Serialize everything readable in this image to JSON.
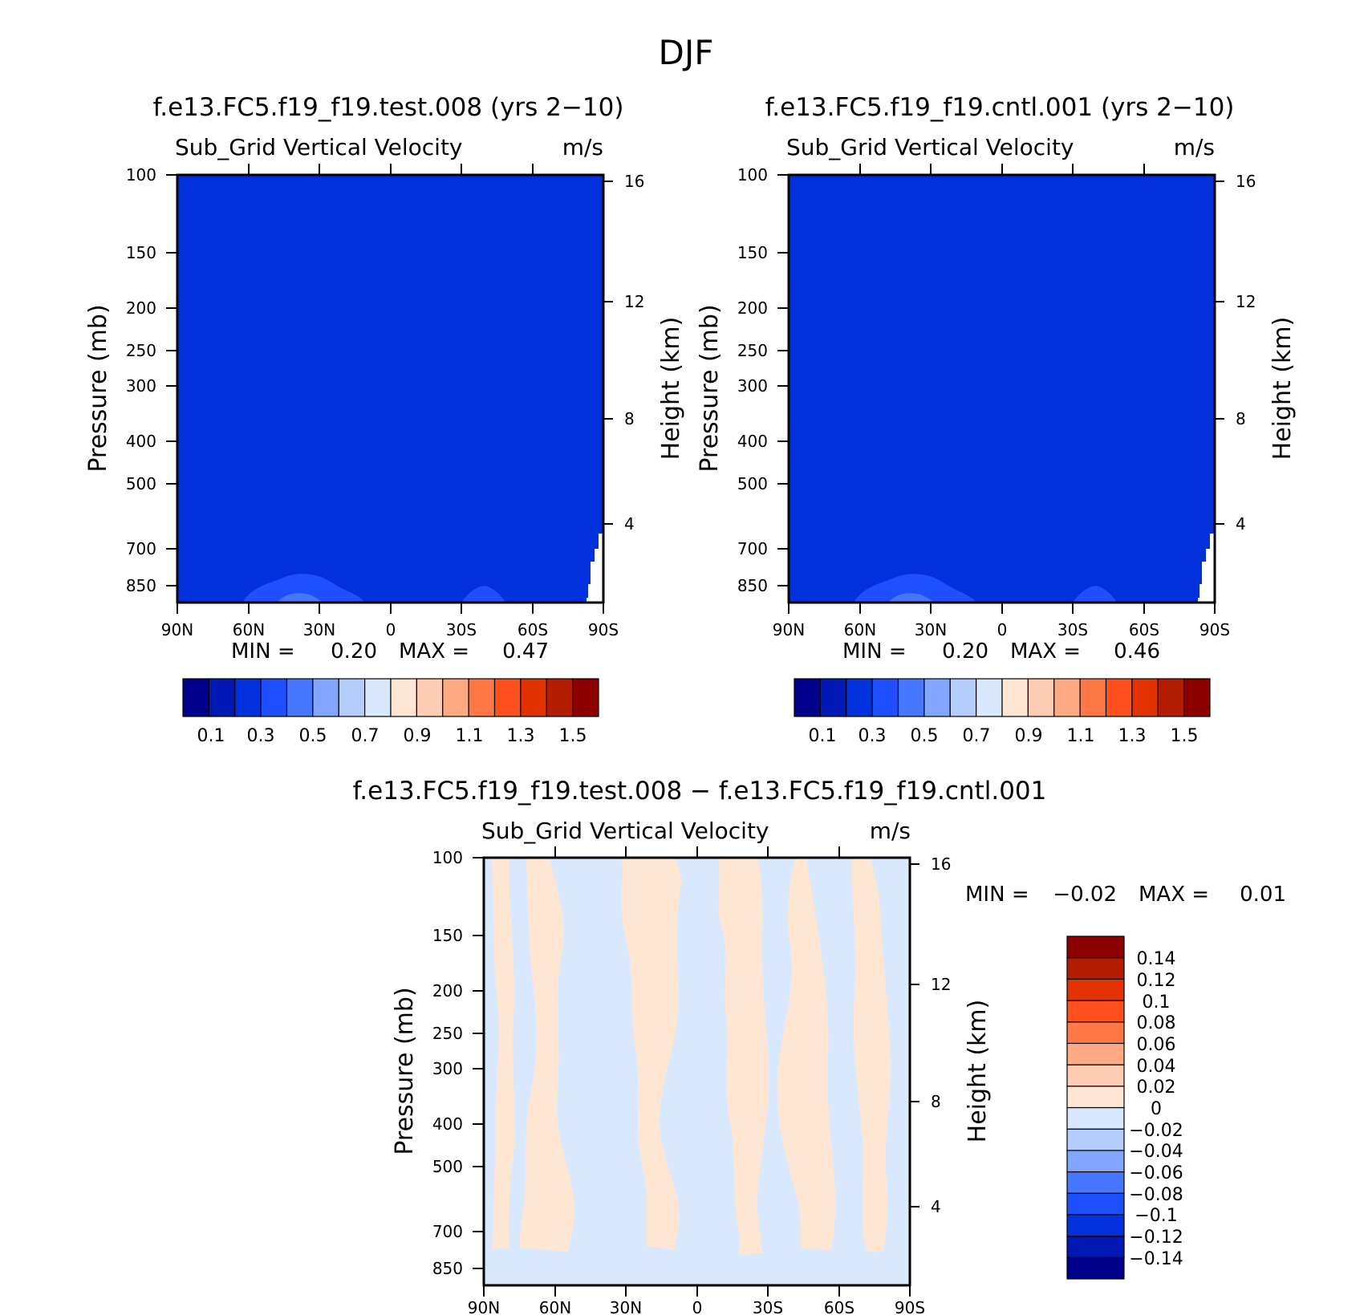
{
  "page_title": "DJF",
  "colors": {
    "abs_scale": [
      "#00008c",
      "#0019b4",
      "#0031dc",
      "#1e50ff",
      "#4678ff",
      "#82a5ff",
      "#b4cdff",
      "#d7e8ff",
      "#ffe6d2",
      "#ffcdb4",
      "#ffaa82",
      "#ff7846",
      "#ff501e",
      "#e13200",
      "#b41e00",
      "#8c0000"
    ],
    "diff_scale": [
      "#00008c",
      "#0019b4",
      "#0031dc",
      "#1e50ff",
      "#4678ff",
      "#82a5ff",
      "#b4cdff",
      "#d7e8ff",
      "#ffe6d2",
      "#ffcdb4",
      "#ffaa82",
      "#ff7846",
      "#ff501e",
      "#e13200",
      "#b41e00",
      "#8c0000"
    ]
  },
  "chart_data": [
    {
      "type": "heatmap",
      "title": "f.e13.FC5.f19_f19.test.008 (yrs 2-10)",
      "variable": "Sub_Grid Vertical Velocity",
      "units": "m/s",
      "ylabel": "Pressure (mb)",
      "y2label": "Height (km)",
      "xticks": [
        "90N",
        "60N",
        "30N",
        "0",
        "30S",
        "60S",
        "90S"
      ],
      "yticks": [
        "100",
        "150",
        "200",
        "250",
        "300",
        "400",
        "500",
        "700",
        "850"
      ],
      "y2ticks": [
        "16",
        "12",
        "8",
        "4"
      ],
      "min_text": "MIN =",
      "min_value": "0.20",
      "max_text": "MAX =",
      "max_value": "0.47",
      "fill_level": "0.2-0.3",
      "colorbar_labels": [
        "0.1",
        "0.3",
        "0.5",
        "0.7",
        "0.9",
        "1.1",
        "1.3",
        "1.5"
      ]
    },
    {
      "type": "heatmap",
      "title": "f.e13.FC5.f19_f19.cntl.001 (yrs 2-10)",
      "variable": "Sub_Grid Vertical Velocity",
      "units": "m/s",
      "ylabel": "Pressure (mb)",
      "y2label": "Height (km)",
      "xticks": [
        "90N",
        "60N",
        "30N",
        "0",
        "30S",
        "60S",
        "90S"
      ],
      "yticks": [
        "100",
        "150",
        "200",
        "250",
        "300",
        "400",
        "500",
        "700",
        "850"
      ],
      "y2ticks": [
        "16",
        "12",
        "8",
        "4"
      ],
      "min_text": "MIN =",
      "min_value": "0.20",
      "max_text": "MAX =",
      "max_value": "0.46",
      "fill_level": "0.2-0.3",
      "colorbar_labels": [
        "0.1",
        "0.3",
        "0.5",
        "0.7",
        "0.9",
        "1.1",
        "1.3",
        "1.5"
      ]
    },
    {
      "type": "heatmap",
      "title": "f.e13.FC5.f19_f19.test.008 - f.e13.FC5.f19_f19.cntl.001",
      "variable": "Sub_Grid Vertical Velocity",
      "units": "m/s",
      "ylabel": "Pressure (mb)",
      "y2label": "Height (km)",
      "xticks": [
        "90N",
        "60N",
        "30N",
        "0",
        "30S",
        "60S",
        "90S"
      ],
      "yticks": [
        "100",
        "150",
        "200",
        "250",
        "300",
        "400",
        "500",
        "700",
        "850"
      ],
      "y2ticks": [
        "16",
        "12",
        "8",
        "4"
      ],
      "min_text": "MIN =",
      "min_value": "-0.02",
      "max_text": "MAX =",
      "max_value": "0.01",
      "fill_levels": [
        "-0.02-0",
        "0-0.02"
      ],
      "colorbar_labels": [
        "0.14",
        "0.12",
        "0.1",
        "0.08",
        "0.06",
        "0.04",
        "0.02",
        "0",
        "-0.02",
        "-0.04",
        "-0.06",
        "-0.08",
        "-0.1",
        "-0.12",
        "-0.14"
      ]
    }
  ]
}
